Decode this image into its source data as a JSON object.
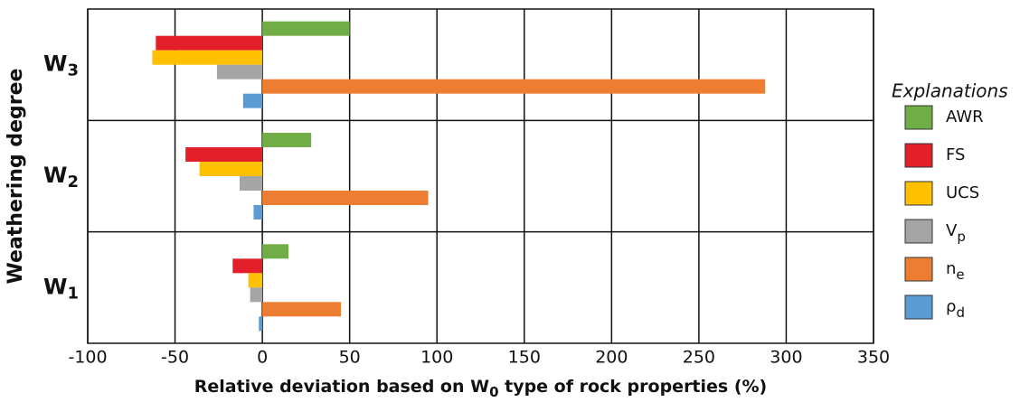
{
  "chart_data": {
    "type": "bar",
    "orientation": "horizontal",
    "categories": [
      "W",
      "W",
      "W"
    ],
    "category_subscripts": [
      "3",
      "2",
      "1"
    ],
    "x_label": {
      "before": "Relative deviation based on W",
      "sub": "0",
      "after": " type of rock properties (%)"
    },
    "y_label": "Weathering degree",
    "legend_title": "Explanations",
    "series": [
      {
        "name": "AWR",
        "color": "#70ad47",
        "values": [
          50,
          28,
          15
        ]
      },
      {
        "name": "FS",
        "color": "#e3202a",
        "values": [
          -61,
          -44,
          -17
        ]
      },
      {
        "name": "UCS",
        "color": "#ffc000",
        "values": [
          -63,
          -36,
          -8
        ]
      },
      {
        "name": "V",
        "subscript": "p",
        "color": "#a5a5a5",
        "values": [
          -26,
          -13,
          -7
        ]
      },
      {
        "name": "n",
        "subscript": "e",
        "color": "#ed7d31",
        "values": [
          288,
          95,
          45
        ]
      },
      {
        "name": "ρ",
        "subscript": "d",
        "color": "#5b9bd5",
        "values": [
          -11,
          -5,
          -2
        ]
      }
    ],
    "xlim": [
      -100,
      350
    ],
    "xticks": [
      -100,
      -50,
      0,
      50,
      100,
      150,
      200,
      250,
      300,
      350
    ],
    "grid": true
  }
}
